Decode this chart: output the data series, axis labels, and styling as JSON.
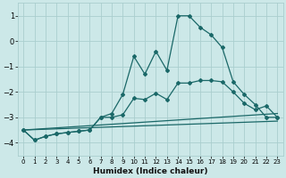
{
  "xlabel": "Humidex (Indice chaleur)",
  "bg_color": "#cce8e8",
  "grid_color": "#aacece",
  "line_color": "#1a6868",
  "xlim": [
    -0.5,
    23.5
  ],
  "ylim": [
    -4.5,
    1.5
  ],
  "yticks": [
    1,
    0,
    -1,
    -2,
    -3,
    -4
  ],
  "xticks": [
    0,
    1,
    2,
    3,
    4,
    5,
    6,
    7,
    8,
    9,
    10,
    11,
    12,
    13,
    14,
    15,
    16,
    17,
    18,
    19,
    20,
    21,
    22,
    23
  ],
  "line1_x": [
    0,
    1,
    2,
    3,
    4,
    5,
    6,
    7,
    8,
    9,
    10,
    11,
    12,
    13,
    14,
    15,
    16,
    17,
    18,
    19,
    20,
    21,
    22,
    23
  ],
  "line1_y": [
    -3.5,
    -3.9,
    -3.75,
    -3.65,
    -3.6,
    -3.55,
    -3.5,
    -3.0,
    -2.85,
    -2.1,
    -0.6,
    -1.3,
    -0.4,
    -1.15,
    1.0,
    1.0,
    0.55,
    0.25,
    -0.25,
    -1.6,
    -2.1,
    -2.5,
    -3.0,
    -3.0
  ],
  "line2_x": [
    0,
    1,
    2,
    3,
    4,
    5,
    6,
    7,
    8,
    9,
    10,
    11,
    12,
    13,
    14,
    15,
    16,
    17,
    18,
    19,
    20,
    21,
    22,
    23
  ],
  "line2_y": [
    -3.5,
    -3.9,
    -3.75,
    -3.65,
    -3.6,
    -3.55,
    -3.5,
    -3.0,
    -3.0,
    -2.9,
    -2.25,
    -2.3,
    -2.05,
    -2.3,
    -1.65,
    -1.65,
    -1.55,
    -1.55,
    -1.6,
    -2.0,
    -2.45,
    -2.7,
    -2.55,
    -3.0
  ],
  "line3_x": [
    0,
    23
  ],
  "line3_y": [
    -3.5,
    -3.15
  ],
  "line4_x": [
    0,
    23
  ],
  "line4_y": [
    -3.5,
    -2.85
  ]
}
